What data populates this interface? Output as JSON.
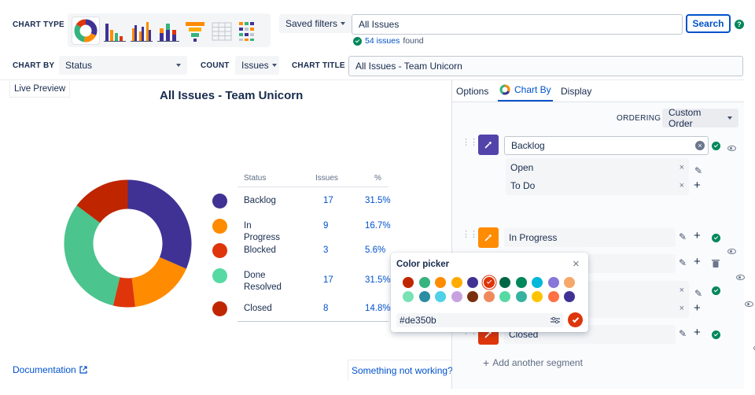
{
  "header": {
    "chart_type_label": "CHART TYPE",
    "saved_filters_label": "Saved filters",
    "query_value": "All Issues",
    "search_label": "Search",
    "help_icon": "help-icon",
    "found_count": "54 issues",
    "found_suffix": "found",
    "chart_by_label": "CHART BY",
    "chart_by_value": "Status",
    "count_label": "COUNT",
    "count_value": "Issues",
    "chart_title_label": "CHART TITLE",
    "chart_title_value": "All Issues - Team Unicorn"
  },
  "preview": {
    "live_preview_label": "Live Preview",
    "title": "All Issues - Team Unicorn",
    "table_headers": [
      "Status",
      "Issues",
      "%"
    ],
    "rows": [
      {
        "label": "Backlog",
        "label2": "",
        "issues": "17",
        "pct": "31.5%",
        "color": "#403294"
      },
      {
        "label": "In Progress",
        "label2": "",
        "issues": "9",
        "pct": "16.7%",
        "color": "#ff8b00"
      },
      {
        "label": "Blocked",
        "label2": "",
        "issues": "3",
        "pct": "5.6%",
        "color": "#de350b"
      },
      {
        "label": "Done",
        "label2": "Resolved",
        "issues": "17",
        "pct": "31.5%",
        "color": "#57d9a3"
      },
      {
        "label": "Closed",
        "label2": "",
        "issues": "8",
        "pct": "14.8%",
        "color": "#bf2600"
      }
    ],
    "documentation_label": "Documentation",
    "feedback_label": "Something not working?"
  },
  "chart_data": {
    "type": "pie",
    "categories": [
      "Backlog",
      "In Progress",
      "Blocked",
      "Done / Resolved",
      "Closed"
    ],
    "values": [
      17,
      9,
      3,
      17,
      8
    ],
    "percentages": [
      31.5,
      16.7,
      5.6,
      31.5,
      14.8
    ],
    "colors": [
      "#403294",
      "#ff8b00",
      "#de350b",
      "#4bc48d",
      "#bf2600"
    ],
    "donut": true,
    "title": "All Issues - Team Unicorn"
  },
  "panel": {
    "tabs": [
      "Options",
      "Chart By",
      "Display"
    ],
    "ordering_label": "ORDERING",
    "ordering_value": "Custom Order",
    "segments": [
      {
        "name": "Backlog",
        "color": "#5243aa",
        "subs": [
          "Open",
          "To Do"
        ]
      },
      {
        "name": "In Progress",
        "color": "#ff8b00",
        "subs": []
      },
      {
        "name": "Blocked",
        "color": "#de350b",
        "subs": []
      },
      {
        "name": "Done",
        "color": "#57d9a3",
        "subs": [
          "",
          ""
        ]
      },
      {
        "name": "Closed",
        "color": "#de350b",
        "subs": []
      }
    ],
    "add_segment_label": "Add another segment"
  },
  "color_picker": {
    "title": "Color picker",
    "row1": [
      "#bf2600",
      "#36b37e",
      "#ff8b00",
      "#ffab00",
      "#403294",
      "#de350b",
      "#006644",
      "#00875a",
      "#00b8d9",
      "#8777d9",
      "#f5a86a"
    ],
    "row2": [
      "#79e2b4",
      "#2a8da3",
      "#4fd1e8",
      "#c8a2e0",
      "#7a2e0e",
      "#f08a5d",
      "#57d9a3",
      "#36b3a0",
      "#ffc400",
      "#ff7043",
      "#403294"
    ],
    "hash": "#",
    "hex_value": "de350b"
  }
}
